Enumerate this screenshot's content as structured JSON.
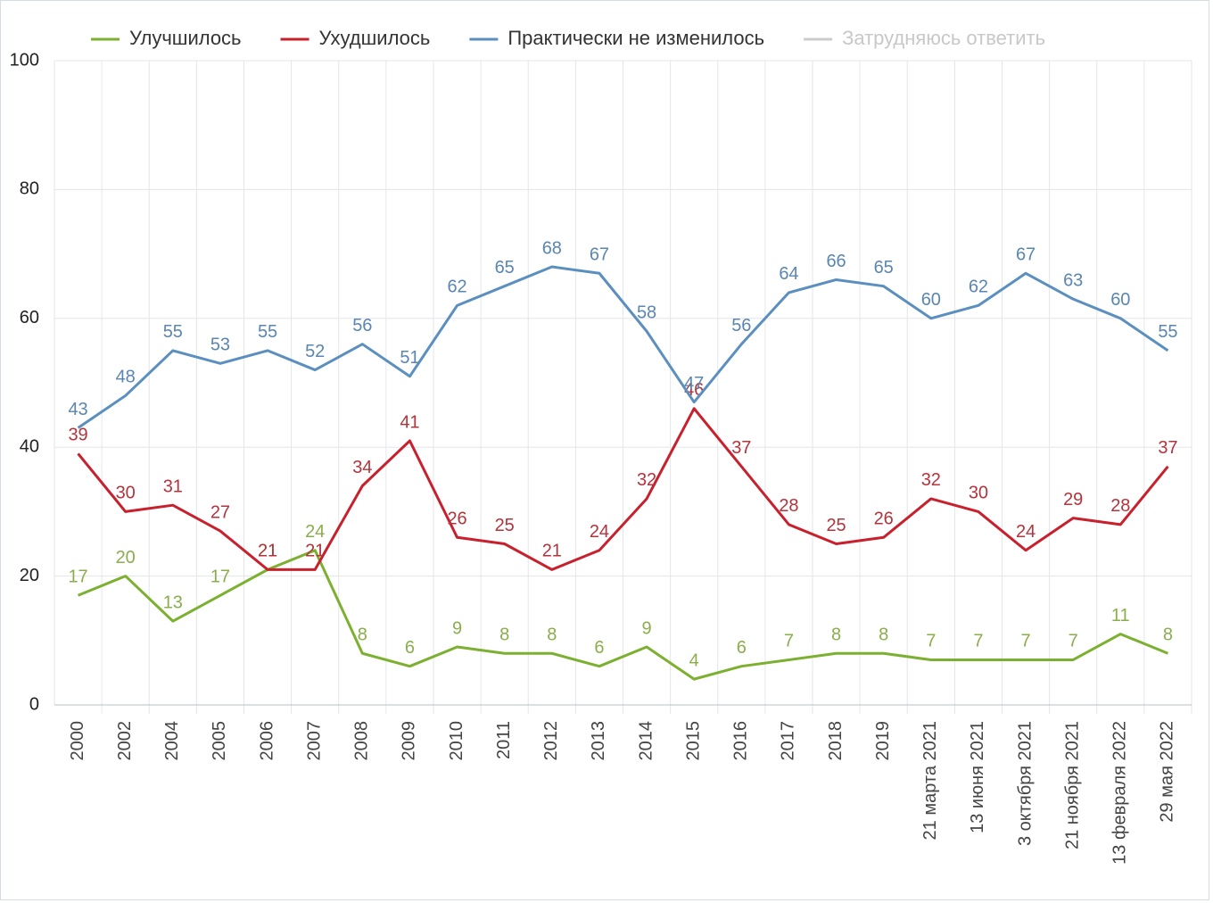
{
  "chart_data": {
    "type": "line",
    "categories": [
      "2000",
      "2002",
      "2004",
      "2005",
      "2006",
      "2007",
      "2008",
      "2009",
      "2010",
      "2011",
      "2012",
      "2013",
      "2014",
      "2015",
      "2016",
      "2017",
      "2018",
      "2019",
      "21 марта 2021",
      "13 июня 2021",
      "3 октября 2021",
      "21 ноября 2021",
      "13 февраля 2022",
      "29 мая 2022"
    ],
    "series": [
      {
        "name": "Улучшилось",
        "color": "#7cb030",
        "values": [
          17,
          20,
          13,
          17,
          21,
          24,
          8,
          6,
          9,
          8,
          8,
          6,
          9,
          4,
          6,
          7,
          8,
          8,
          7,
          7,
          7,
          7,
          11,
          8
        ]
      },
      {
        "name": "Ухудшилось",
        "color": "#c8202c",
        "values": [
          39,
          30,
          31,
          27,
          21,
          21,
          34,
          41,
          26,
          25,
          21,
          24,
          32,
          46,
          37,
          28,
          25,
          26,
          32,
          30,
          24,
          29,
          28,
          37
        ]
      },
      {
        "name": "Практически не изменилось",
        "color": "#5b8fbf",
        "values": [
          43,
          48,
          55,
          53,
          55,
          52,
          56,
          51,
          62,
          65,
          68,
          67,
          58,
          47,
          56,
          64,
          66,
          65,
          60,
          62,
          67,
          63,
          60,
          55
        ]
      },
      {
        "name": "Затрудняюсь ответить",
        "color": "#cccccc",
        "visible": false,
        "values": [
          null,
          null,
          null,
          null,
          null,
          null,
          null,
          null,
          null,
          null,
          null,
          null,
          null,
          null,
          null,
          null,
          null,
          null,
          null,
          null,
          null,
          null,
          null,
          null
        ]
      }
    ],
    "ylim": [
      0,
      100
    ],
    "yticks": [
      0,
      20,
      40,
      60,
      80,
      100
    ],
    "grid": true,
    "legend": "top"
  }
}
